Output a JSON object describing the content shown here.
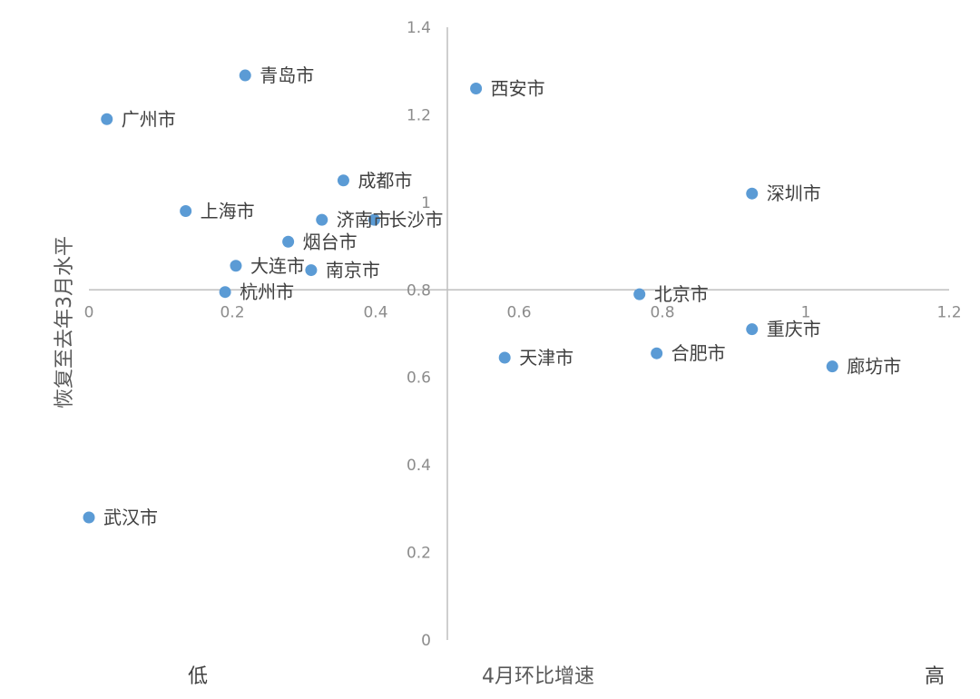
{
  "chart_data": {
    "type": "scatter",
    "xlabel": "4月环比增速",
    "ylabel": "恢复至去年3月水平",
    "x_low_label": "低",
    "x_high_label": "高",
    "xlim": [
      0,
      1.2
    ],
    "ylim": [
      0,
      1.4
    ],
    "xticks": [
      "0",
      "0.2",
      "0.4",
      "0.6",
      "0.8",
      "1",
      "1.2"
    ],
    "yticks": [
      "0",
      "0.2",
      "0.4",
      "0.6",
      "0.8",
      "1",
      "1.2",
      "1.4"
    ],
    "color": "#5B9BD5",
    "points": [
      {
        "label": "青岛市",
        "x": 0.218,
        "y": 1.29
      },
      {
        "label": "广州市",
        "x": 0.025,
        "y": 1.19
      },
      {
        "label": "西安市",
        "x": 0.54,
        "y": 1.26
      },
      {
        "label": "成都市",
        "x": 0.355,
        "y": 1.05
      },
      {
        "label": "深圳市",
        "x": 0.925,
        "y": 1.02
      },
      {
        "label": "上海市",
        "x": 0.135,
        "y": 0.98
      },
      {
        "label": "济南市",
        "x": 0.325,
        "y": 0.96
      },
      {
        "label": "长沙市",
        "x": 0.398,
        "y": 0.96
      },
      {
        "label": "烟台市",
        "x": 0.278,
        "y": 0.91
      },
      {
        "label": "大连市",
        "x": 0.205,
        "y": 0.855
      },
      {
        "label": "南京市",
        "x": 0.31,
        "y": 0.845
      },
      {
        "label": "杭州市",
        "x": 0.19,
        "y": 0.795
      },
      {
        "label": "北京市",
        "x": 0.768,
        "y": 0.79
      },
      {
        "label": "重庆市",
        "x": 0.925,
        "y": 0.71
      },
      {
        "label": "天津市",
        "x": 0.58,
        "y": 0.645
      },
      {
        "label": "合肥市",
        "x": 0.792,
        "y": 0.655
      },
      {
        "label": "廊坊市",
        "x": 1.037,
        "y": 0.625
      },
      {
        "label": "武汉市",
        "x": 0.0,
        "y": 0.28
      }
    ]
  }
}
